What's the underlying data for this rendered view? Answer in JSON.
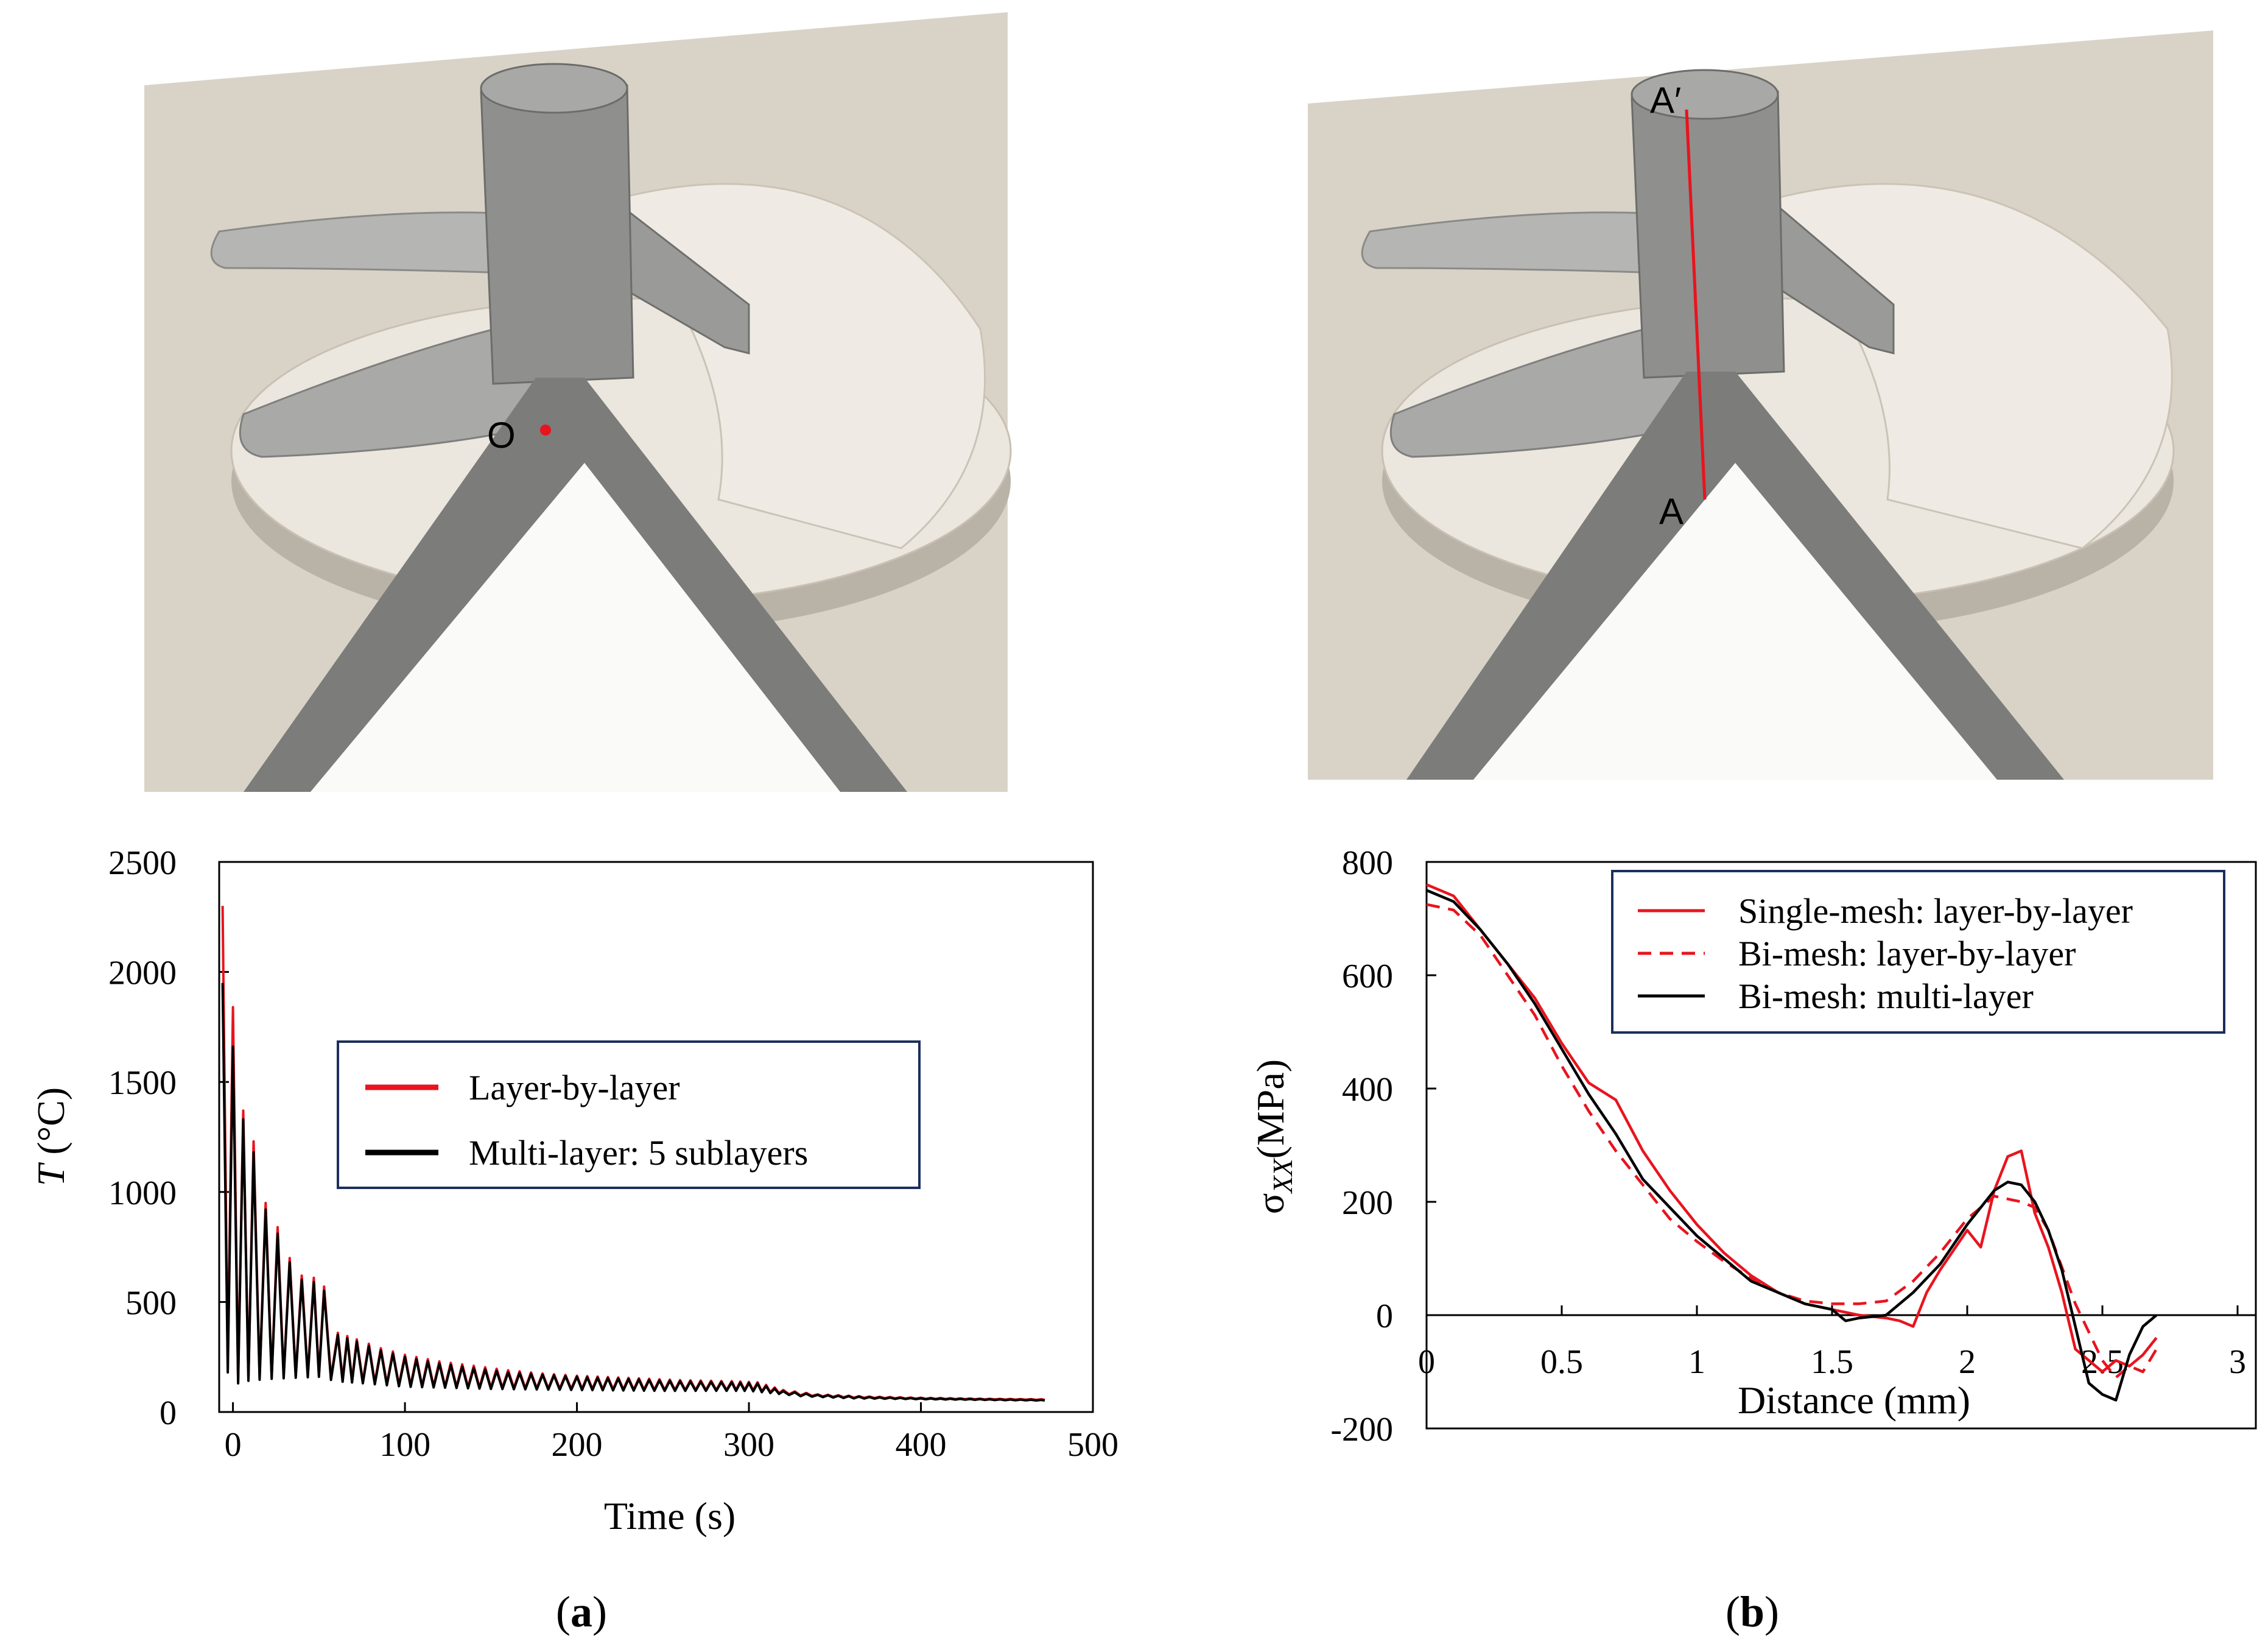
{
  "panels": {
    "a": {
      "label": "a",
      "point_label": "O"
    },
    "b": {
      "label": "b",
      "line_start_label": "A",
      "line_end_label": "A′"
    }
  },
  "colors": {
    "red": "#e8141e",
    "black": "#000000",
    "scene_bg": "#d8d2c6",
    "part_gray": "#8c8c8a",
    "part_light": "#ebe6de",
    "legend_border": "#1b2f5c"
  },
  "chart_data": [
    {
      "id": "a",
      "type": "line",
      "xlabel": "Time (s)",
      "ylabel_italic": "T",
      "ylabel_unit": " (°C)",
      "xlim": [
        -8,
        500
      ],
      "ylim": [
        0,
        2500
      ],
      "xticks": [
        0,
        100,
        200,
        300,
        400,
        500
      ],
      "yticks": [
        0,
        500,
        1000,
        1500,
        2000,
        2500
      ],
      "legend_position": "center",
      "series": [
        {
          "name": "Layer-by-layer",
          "color": "#e8141e",
          "style": "solid",
          "peaks": [
            [
              -6,
              2300
            ],
            [
              0,
              1840
            ],
            [
              6,
              1370
            ],
            [
              12,
              1230
            ],
            [
              19,
              950
            ],
            [
              26,
              840
            ],
            [
              33,
              700
            ],
            [
              40,
              620
            ],
            [
              47,
              610
            ],
            [
              53,
              570
            ],
            [
              61,
              360
            ],
            [
              72,
              330
            ],
            [
              86,
              290
            ],
            [
              100,
              260
            ],
            [
              120,
              230
            ],
            [
              140,
              210
            ],
            [
              160,
              190
            ],
            [
              180,
              175
            ],
            [
              200,
              165
            ],
            [
              230,
              155
            ],
            [
              260,
              145
            ],
            [
              290,
              140
            ],
            [
              305,
              135
            ],
            [
              320,
              100
            ],
            [
              340,
              80
            ],
            [
              370,
              70
            ],
            [
              400,
              65
            ],
            [
              440,
              60
            ],
            [
              470,
              58
            ]
          ],
          "trough": [
            [
              -6,
              260
            ],
            [
              0,
              130
            ],
            [
              6,
              150
            ],
            [
              20,
              160
            ],
            [
              50,
              170
            ],
            [
              60,
              150
            ],
            [
              100,
              120
            ],
            [
              150,
              110
            ],
            [
              200,
              105
            ],
            [
              250,
              100
            ],
            [
              300,
              100
            ],
            [
              330,
              75
            ],
            [
              360,
              65
            ],
            [
              400,
              60
            ],
            [
              470,
              55
            ]
          ]
        },
        {
          "name": "Multi-layer: 5 sublayers",
          "color": "#000000",
          "style": "solid",
          "peaks": [
            [
              -6,
              1950
            ],
            [
              0,
              1660
            ],
            [
              6,
              1330
            ],
            [
              12,
              1180
            ],
            [
              19,
              920
            ],
            [
              26,
              810
            ],
            [
              33,
              680
            ],
            [
              40,
              600
            ],
            [
              47,
              590
            ],
            [
              53,
              550
            ],
            [
              61,
              350
            ],
            [
              72,
              320
            ],
            [
              86,
              280
            ],
            [
              100,
              250
            ],
            [
              120,
              220
            ],
            [
              140,
              200
            ],
            [
              160,
              180
            ],
            [
              180,
              170
            ],
            [
              200,
              160
            ],
            [
              230,
              150
            ],
            [
              260,
              140
            ],
            [
              290,
              135
            ],
            [
              305,
              130
            ],
            [
              320,
              95
            ],
            [
              340,
              78
            ],
            [
              370,
              68
            ],
            [
              400,
              62
            ],
            [
              440,
              58
            ],
            [
              470,
              55
            ]
          ],
          "trough": [
            [
              -6,
              240
            ],
            [
              0,
              120
            ],
            [
              6,
              140
            ],
            [
              20,
              150
            ],
            [
              50,
              160
            ],
            [
              60,
              140
            ],
            [
              100,
              115
            ],
            [
              150,
              105
            ],
            [
              200,
              100
            ],
            [
              250,
              96
            ],
            [
              300,
              96
            ],
            [
              330,
              72
            ],
            [
              360,
              62
            ],
            [
              400,
              58
            ],
            [
              470,
              52
            ]
          ]
        }
      ]
    },
    {
      "id": "b",
      "type": "line",
      "xlabel": "Distance (mm)",
      "ylabel_sigma": "σ",
      "ylabel_sub": "XX",
      "ylabel_unit": "(MPa)",
      "xlim": [
        0,
        3
      ],
      "ylim": [
        -200,
        800
      ],
      "xticks": [
        "0",
        "0.5",
        "1",
        "1.5",
        "2",
        "2.5",
        "3"
      ],
      "yticks": [
        -200,
        0,
        200,
        400,
        600,
        800
      ],
      "legend_position": "top-right",
      "series": [
        {
          "name": "Single-mesh: layer-by-layer",
          "color": "#e8141e",
          "style": "solid",
          "x": [
            0,
            0.1,
            0.2,
            0.3,
            0.4,
            0.5,
            0.6,
            0.7,
            0.8,
            0.9,
            1.0,
            1.1,
            1.2,
            1.3,
            1.4,
            1.5,
            1.6,
            1.7,
            1.75,
            1.8,
            1.85,
            1.9,
            2.0,
            2.05,
            2.1,
            2.15,
            2.2,
            2.25,
            2.3,
            2.35,
            2.4,
            2.45,
            2.5,
            2.55,
            2.6,
            2.65,
            2.7
          ],
          "y": [
            760,
            740,
            680,
            620,
            560,
            480,
            410,
            380,
            290,
            220,
            160,
            110,
            70,
            40,
            20,
            10,
            0,
            -5,
            -10,
            -20,
            40,
            80,
            150,
            120,
            220,
            280,
            290,
            180,
            120,
            40,
            -60,
            -80,
            -100,
            -80,
            -90,
            -70,
            -40
          ]
        },
        {
          "name": "Bi-mesh: layer-by-layer",
          "color": "#e8141e",
          "style": "dashed",
          "x": [
            0,
            0.1,
            0.2,
            0.3,
            0.4,
            0.5,
            0.6,
            0.7,
            0.8,
            0.9,
            1.0,
            1.1,
            1.2,
            1.3,
            1.4,
            1.5,
            1.6,
            1.7,
            1.8,
            1.9,
            2.0,
            2.1,
            2.2,
            2.25,
            2.3,
            2.4,
            2.5,
            2.55,
            2.6,
            2.65,
            2.7
          ],
          "y": [
            725,
            715,
            670,
            600,
            530,
            440,
            360,
            290,
            230,
            170,
            130,
            95,
            65,
            40,
            25,
            20,
            20,
            25,
            60,
            110,
            170,
            210,
            200,
            190,
            150,
            20,
            -80,
            -110,
            -90,
            -100,
            -60
          ]
        },
        {
          "name": "Bi-mesh: multi-layer",
          "color": "#000000",
          "style": "solid",
          "x": [
            0,
            0.1,
            0.2,
            0.3,
            0.4,
            0.5,
            0.6,
            0.7,
            0.8,
            0.9,
            1.0,
            1.1,
            1.2,
            1.3,
            1.4,
            1.5,
            1.55,
            1.6,
            1.7,
            1.8,
            1.9,
            2.0,
            2.1,
            2.15,
            2.2,
            2.25,
            2.3,
            2.35,
            2.4,
            2.45,
            2.5,
            2.55,
            2.6,
            2.65,
            2.7
          ],
          "y": [
            750,
            730,
            680,
            620,
            550,
            470,
            390,
            320,
            240,
            190,
            140,
            100,
            60,
            40,
            20,
            10,
            -10,
            -5,
            0,
            40,
            90,
            160,
            220,
            235,
            230,
            200,
            150,
            80,
            -20,
            -120,
            -140,
            -150,
            -70,
            -20,
            0
          ]
        }
      ]
    }
  ]
}
